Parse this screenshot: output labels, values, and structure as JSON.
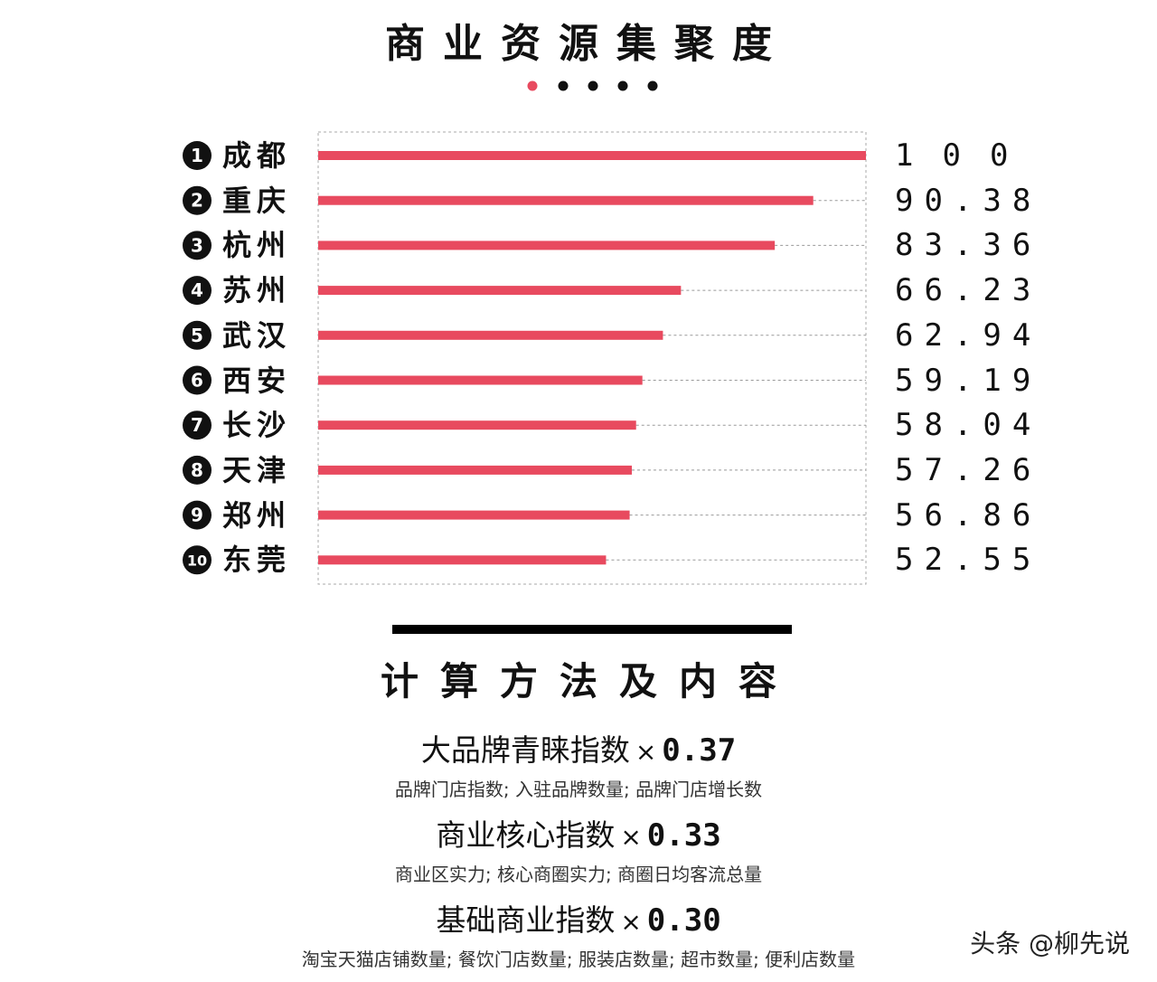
{
  "header": {
    "title": "商业资源集聚度"
  },
  "chart_data": {
    "type": "bar",
    "orientation": "horizontal",
    "title": "商业资源集聚度",
    "xlim": [
      0,
      100
    ],
    "rows": [
      {
        "rank": "1",
        "city": "成都",
        "value": 100,
        "value_label": "100"
      },
      {
        "rank": "2",
        "city": "重庆",
        "value": 90.38,
        "value_label": "90.38"
      },
      {
        "rank": "3",
        "city": "杭州",
        "value": 83.36,
        "value_label": "83.36"
      },
      {
        "rank": "4",
        "city": "苏州",
        "value": 66.23,
        "value_label": "66.23"
      },
      {
        "rank": "5",
        "city": "武汉",
        "value": 62.94,
        "value_label": "62.94"
      },
      {
        "rank": "6",
        "city": "西安",
        "value": 59.19,
        "value_label": "59.19"
      },
      {
        "rank": "7",
        "city": "长沙",
        "value": 58.04,
        "value_label": "58.04"
      },
      {
        "rank": "8",
        "city": "天津",
        "value": 57.26,
        "value_label": "57.26"
      },
      {
        "rank": "9",
        "city": "郑州",
        "value": 56.86,
        "value_label": "56.86"
      },
      {
        "rank": "10",
        "city": "东莞",
        "value": 52.55,
        "value_label": "52.55"
      }
    ],
    "bar_color": "#e84a5f",
    "grid": "dashed"
  },
  "method": {
    "title": "计算方法及内容",
    "times_symbol": "×",
    "formulas": [
      {
        "name": "大品牌青睐指数",
        "weight": "0.37",
        "desc": "品牌门店指数; 入驻品牌数量; 品牌门店增长数"
      },
      {
        "name": "商业核心指数",
        "weight": "0.33",
        "desc": "商业区实力; 核心商圈实力; 商圈日均客流总量"
      },
      {
        "name": "基础商业指数",
        "weight": "0.30",
        "desc": "淘宝天猫店铺数量; 餐饮门店数量; 服装店数量; 超市数量; 便利店数量"
      }
    ]
  },
  "watermark": "头条 @柳先说",
  "colors": {
    "accent": "#e84a5f",
    "text": "#111111"
  }
}
